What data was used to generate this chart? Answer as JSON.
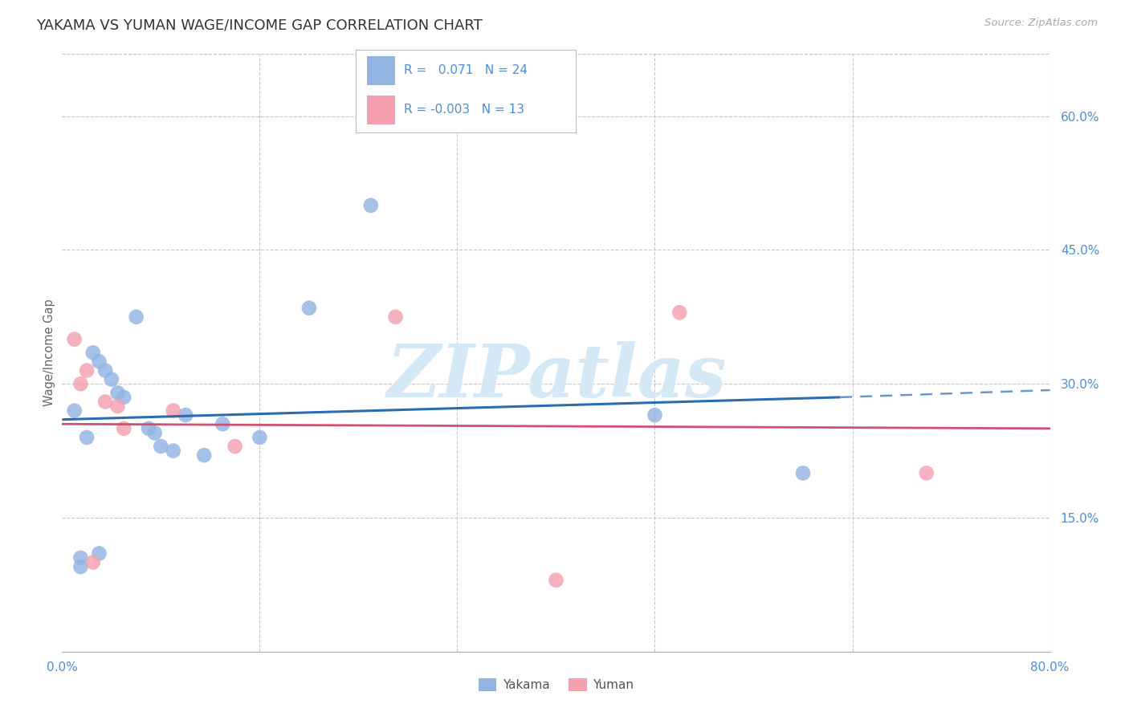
{
  "title": "YAKAMA VS YUMAN WAGE/INCOME GAP CORRELATION CHART",
  "source": "Source: ZipAtlas.com",
  "ylabel": "Wage/Income Gap",
  "xlim": [
    0.0,
    80.0
  ],
  "ylim": [
    0.0,
    67.0
  ],
  "ytick_positions": [
    15.0,
    30.0,
    45.0,
    60.0
  ],
  "xtick_positions": [
    0.0,
    16.0,
    32.0,
    48.0,
    64.0,
    80.0
  ],
  "yakama_R": 0.071,
  "yakama_N": 24,
  "yuman_R": -0.003,
  "yuman_N": 13,
  "yakama_color": "#92b4e3",
  "yuman_color": "#f4a0b0",
  "yakama_line_color": "#2a6cb0",
  "yuman_line_color": "#d05070",
  "axis_label_color": "#4a90d9",
  "grid_color": "#c8c8c8",
  "watermark_color": "#d5e8f5",
  "background_color": "#ffffff",
  "yakama_points_x": [
    1.0,
    2.0,
    2.5,
    3.0,
    3.5,
    4.0,
    4.5,
    5.0,
    6.0,
    7.0,
    7.5,
    8.0,
    9.0,
    10.0,
    11.5,
    13.0,
    16.0,
    20.0,
    25.0,
    48.0,
    60.0,
    1.5,
    1.5,
    3.0
  ],
  "yakama_points_y": [
    27.0,
    24.0,
    33.5,
    32.5,
    31.5,
    30.5,
    29.0,
    28.5,
    37.5,
    25.0,
    24.5,
    23.0,
    22.5,
    26.5,
    22.0,
    25.5,
    24.0,
    38.5,
    50.0,
    26.5,
    20.0,
    10.5,
    9.5,
    11.0
  ],
  "yuman_points_x": [
    1.0,
    2.0,
    3.5,
    4.5,
    5.0,
    9.0,
    14.0,
    27.0,
    40.0,
    50.0,
    70.0,
    1.5,
    2.5
  ],
  "yuman_points_y": [
    35.0,
    31.5,
    28.0,
    27.5,
    25.0,
    27.0,
    23.0,
    37.5,
    8.0,
    38.0,
    20.0,
    30.0,
    10.0
  ],
  "yakama_trend_x0": 0.0,
  "yakama_trend_x1": 63.0,
  "yakama_trend_y0": 26.0,
  "yakama_trend_y1": 28.5,
  "yakama_dash_x0": 63.0,
  "yakama_dash_x1": 80.0,
  "yakama_dash_y0": 28.5,
  "yakama_dash_y1": 29.3,
  "yuman_trend_x0": 0.0,
  "yuman_trend_x1": 80.0,
  "yuman_trend_y0": 25.5,
  "yuman_trend_y1": 25.0,
  "title_fontsize": 13,
  "tick_fontsize": 11,
  "legend_fontsize": 11,
  "marker_size": 180,
  "marker_alpha": 0.82
}
